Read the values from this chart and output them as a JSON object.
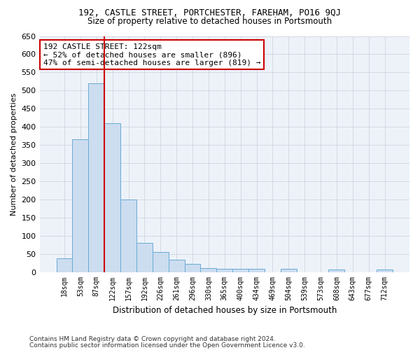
{
  "title1": "192, CASTLE STREET, PORTCHESTER, FAREHAM, PO16 9QJ",
  "title2": "Size of property relative to detached houses in Portsmouth",
  "xlabel": "Distribution of detached houses by size in Portsmouth",
  "ylabel": "Number of detached properties",
  "footer1": "Contains HM Land Registry data © Crown copyright and database right 2024.",
  "footer2": "Contains public sector information licensed under the Open Government Licence v3.0.",
  "annotation_line1": "192 CASTLE STREET: 122sqm",
  "annotation_line2": "← 52% of detached houses are smaller (896)",
  "annotation_line3": "47% of semi-detached houses are larger (819) →",
  "bar_color": "#ccddf0",
  "bar_edge_color": "#6aaad4",
  "red_line_color": "#cc0000",
  "categories": [
    "18sqm",
    "53sqm",
    "87sqm",
    "122sqm",
    "157sqm",
    "192sqm",
    "226sqm",
    "261sqm",
    "296sqm",
    "330sqm",
    "365sqm",
    "400sqm",
    "434sqm",
    "469sqm",
    "504sqm",
    "539sqm",
    "573sqm",
    "608sqm",
    "643sqm",
    "677sqm",
    "712sqm"
  ],
  "values": [
    38,
    365,
    520,
    410,
    200,
    80,
    55,
    33,
    22,
    10,
    8,
    8,
    8,
    0,
    8,
    0,
    0,
    6,
    0,
    0,
    6
  ],
  "red_line_index": 2.5,
  "ylim": [
    0,
    650
  ],
  "yticks": [
    0,
    50,
    100,
    150,
    200,
    250,
    300,
    350,
    400,
    450,
    500,
    550,
    600,
    650
  ],
  "background_color": "#edf2f9",
  "grid_color": "#c8d0dc"
}
